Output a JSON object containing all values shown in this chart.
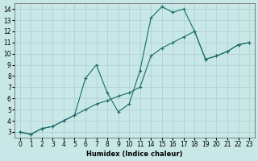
{
  "xlabel": "Humidex (Indice chaleur)",
  "bg_color": "#c8e8e8",
  "line_color": "#1a6b6b",
  "grid_color": "#b0cccc",
  "xlabels": [
    "0",
    "1",
    "2",
    "3",
    "4",
    "5",
    "6",
    "7",
    "8",
    "9",
    "10",
    "11",
    "14",
    "15",
    "16",
    "17",
    "18",
    "19",
    "20",
    "21",
    "22",
    "23"
  ],
  "zigzag_xi": [
    0,
    1,
    2,
    3,
    4,
    5,
    6,
    7,
    8,
    9,
    10,
    11,
    12,
    13,
    14,
    15,
    16,
    17,
    18,
    19,
    20,
    21
  ],
  "zigzag_y": [
    3.0,
    2.8,
    3.3,
    3.5,
    4.0,
    4.5,
    7.8,
    9.0,
    6.5,
    4.8,
    5.5,
    8.5,
    13.2,
    14.2,
    13.7,
    14.0,
    12.0,
    9.5,
    9.8,
    10.2,
    10.8,
    11.0
  ],
  "diag_xi": [
    0,
    1,
    2,
    3,
    4,
    5,
    6,
    7,
    8,
    9,
    10,
    11,
    12,
    13,
    14,
    15,
    16,
    17,
    18,
    19,
    20,
    21
  ],
  "diag_y": [
    3.0,
    2.8,
    3.3,
    3.5,
    4.0,
    4.5,
    5.0,
    5.5,
    5.8,
    6.2,
    6.5,
    7.0,
    9.8,
    10.5,
    11.0,
    11.5,
    12.0,
    9.5,
    9.8,
    10.2,
    10.8,
    11.0
  ],
  "ylim": [
    2.5,
    14.5
  ],
  "yticks": [
    3,
    4,
    5,
    6,
    7,
    8,
    9,
    10,
    11,
    12,
    13,
    14
  ]
}
